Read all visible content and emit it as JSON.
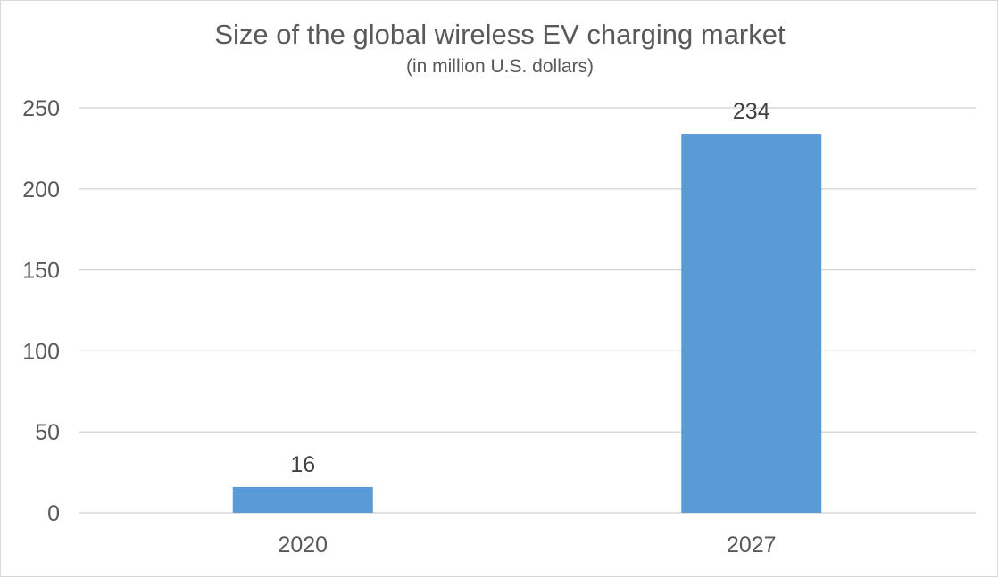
{
  "chart_data": {
    "type": "bar",
    "title": "Size of the global wireless EV charging market",
    "subtitle": "(in million U.S. dollars)",
    "xlabel": "",
    "ylabel": "",
    "categories": [
      "2020",
      "2027"
    ],
    "values": [
      16,
      234
    ],
    "data_labels": [
      "16",
      "234"
    ],
    "ylim": [
      0,
      250
    ],
    "yticks": [
      0,
      50,
      100,
      150,
      200,
      250
    ],
    "ytick_labels": [
      "0",
      "50",
      "100",
      "150",
      "200",
      "250"
    ],
    "grid": true,
    "legend": "none",
    "bar_color": "#5b9bd5",
    "grid_color": "#d9d9d9"
  }
}
